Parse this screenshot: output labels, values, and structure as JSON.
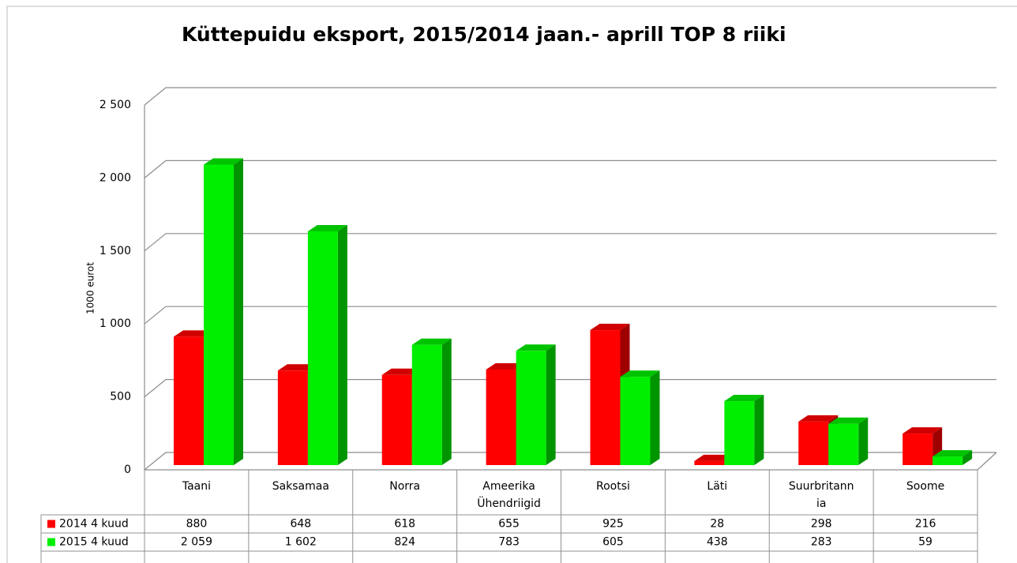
{
  "chart_data": {
    "type": "bar3d",
    "title": "Küttepuidu eksport, 2015/2014 jaan.- aprill TOP 8 riiki",
    "y_axis_label": "1000 eurot",
    "categories": [
      "Taani",
      "Saksamaa",
      "Norra",
      "Ameerika Ühendriigid",
      "Rootsi",
      "Läti",
      "Suurbritannia",
      "Soome"
    ],
    "series": [
      {
        "name": "2014 4 kuud",
        "color": "#ff0000",
        "values": [
          880,
          648,
          618,
          655,
          925,
          28,
          298,
          216
        ]
      },
      {
        "name": "2015 4 kuud",
        "color": "#00ee00",
        "values": [
          2059,
          1602,
          824,
          783,
          605,
          438,
          283,
          59
        ],
        "value_labels": [
          "2 059",
          "1 602",
          "824",
          "783",
          "605",
          "438",
          "283",
          "59"
        ]
      }
    ],
    "ylim": [
      0,
      2500
    ],
    "yticks": [
      0,
      500,
      {
        "value": 1000,
        "label": "1 000"
      },
      {
        "value": 1500,
        "label": "1 500"
      },
      {
        "value": 2000,
        "label": "2 000"
      },
      {
        "value": 2500,
        "label": "2 500"
      }
    ],
    "grid": true,
    "data_table": true
  }
}
